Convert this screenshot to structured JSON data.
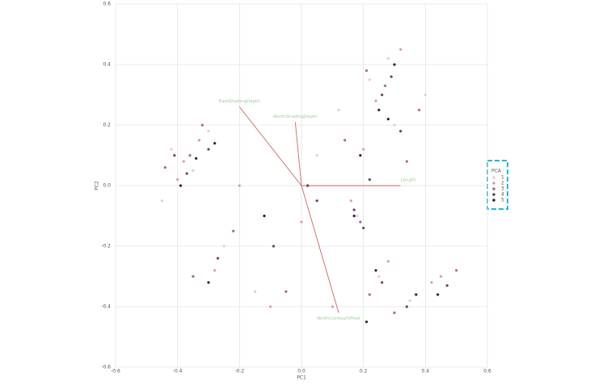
{
  "chart_data": {
    "type": "scatter",
    "xlabel": "PC1",
    "ylabel": "PC2",
    "xlim": [
      -0.6,
      0.6
    ],
    "ylim": [
      -0.6,
      0.6
    ],
    "xticks": [
      -0.6,
      -0.4,
      -0.2,
      {
        "value": 0,
        "label": "0.0"
      },
      0.2,
      0.4,
      0.6
    ],
    "yticks": [
      -0.6,
      -0.4,
      -0.2,
      {
        "value": 0,
        "label": "0.0"
      },
      0.2,
      0.4,
      0.6
    ],
    "grid": true,
    "legend_title": "PCA",
    "legend_position": "right",
    "series": [
      {
        "name": "1",
        "color": "#f2c6d4",
        "x": [
          -0.42,
          -0.35,
          -0.3,
          0.22,
          0.28,
          0.3,
          0.18,
          0.25,
          0.35,
          -0.25,
          -0.15,
          0.05,
          0.4,
          -0.45,
          0.12
        ],
        "values": [
          0.12,
          0.05,
          0.18,
          0.35,
          0.42,
          0.2,
          -0.1,
          -0.3,
          -0.38,
          -0.2,
          -0.35,
          0.1,
          0.3,
          -0.05,
          0.25
        ]
      },
      {
        "name": "2",
        "color": "#d99ab6",
        "x": [
          -0.38,
          -0.33,
          -0.4,
          0.24,
          0.32,
          0.2,
          0.16,
          0.28,
          0.42,
          -0.28,
          -0.1,
          0.0,
          0.45,
          -0.2,
          0.1
        ],
        "values": [
          0.08,
          0.15,
          0.02,
          0.28,
          0.45,
          0.12,
          -0.05,
          -0.25,
          -0.32,
          -0.28,
          -0.4,
          -0.12,
          -0.3,
          0.0,
          -0.4
        ]
      },
      {
        "name": "3",
        "color": "#a86799",
        "x": [
          -0.36,
          -0.44,
          -0.32,
          0.27,
          0.21,
          0.34,
          0.19,
          0.22,
          0.3,
          -0.22,
          -0.35,
          -0.05,
          0.5,
          0.14,
          0.38
        ],
        "values": [
          0.1,
          0.06,
          0.2,
          0.33,
          0.38,
          0.08,
          -0.12,
          -0.36,
          -0.42,
          -0.15,
          -0.3,
          -0.35,
          -0.28,
          0.15,
          0.25
        ]
      },
      {
        "name": "4",
        "color": "#6b3f73",
        "x": [
          -0.37,
          -0.3,
          -0.41,
          0.26,
          0.29,
          0.22,
          0.2,
          0.26,
          0.34,
          -0.27,
          -0.09,
          0.05,
          0.47,
          0.17,
          0.32
        ],
        "values": [
          0.04,
          0.12,
          0.1,
          0.3,
          0.36,
          0.02,
          -0.14,
          -0.32,
          -0.4,
          -0.24,
          -0.2,
          -0.05,
          -0.33,
          -0.08,
          0.18
        ]
      },
      {
        "name": "5",
        "color": "#2e1f40",
        "x": [
          -0.34,
          -0.39,
          -0.28,
          0.25,
          0.3,
          0.19,
          0.17,
          0.24,
          0.37,
          -0.3,
          -0.12,
          0.02,
          0.44,
          0.21,
          0.28
        ],
        "values": [
          0.09,
          0.0,
          0.14,
          0.25,
          0.4,
          0.1,
          -0.1,
          -0.28,
          -0.36,
          -0.32,
          -0.1,
          0.0,
          -0.36,
          -0.45,
          0.22
        ]
      }
    ],
    "loadings": [
      {
        "name": "EastShadingDepth",
        "x": -0.2,
        "y": 0.26
      },
      {
        "name": "NorthShadingDepth",
        "x": -0.02,
        "y": 0.21
      },
      {
        "name": "NorthContourOffset",
        "x": 0.12,
        "y": -0.42
      },
      {
        "name": "Length",
        "x": 0.32,
        "y": 0.0
      }
    ]
  }
}
